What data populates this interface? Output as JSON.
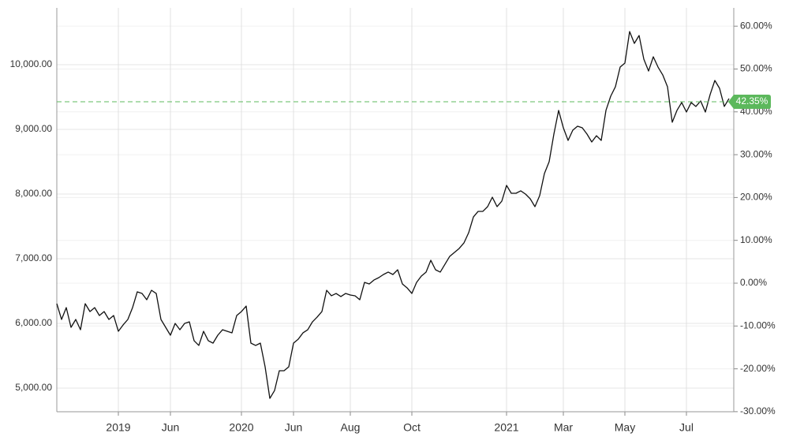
{
  "chart_data": {
    "type": "line",
    "categories": [
      null,
      null,
      null,
      null,
      null,
      null,
      null,
      null,
      null,
      null,
      null,
      null,
      null,
      "2019",
      null,
      null,
      null,
      null,
      null,
      null,
      null,
      null,
      null,
      null,
      "Jun",
      null,
      null,
      null,
      null,
      null,
      null,
      null,
      null,
      null,
      null,
      null,
      null,
      null,
      null,
      "2020",
      null,
      null,
      null,
      null,
      null,
      null,
      null,
      null,
      null,
      null,
      "Jun",
      null,
      null,
      null,
      null,
      null,
      null,
      null,
      null,
      null,
      null,
      null,
      "Aug",
      null,
      null,
      null,
      null,
      null,
      null,
      null,
      null,
      null,
      null,
      null,
      null,
      "Oct",
      null,
      null,
      null,
      null,
      null,
      null,
      null,
      null,
      null,
      null,
      null,
      null,
      null,
      null,
      null,
      null,
      null,
      null,
      null,
      "2021",
      null,
      null,
      null,
      null,
      null,
      null,
      null,
      null,
      null,
      null,
      null,
      "Mar",
      null,
      null,
      null,
      null,
      null,
      null,
      null,
      null,
      null,
      null,
      null,
      null,
      "May",
      null,
      null,
      null,
      null,
      null,
      null,
      null,
      null,
      null,
      null,
      null,
      null,
      "Jul",
      null,
      null,
      null,
      null,
      null,
      null,
      null,
      null,
      null
    ],
    "values": [
      6305,
      6061,
      6244,
      5939,
      6061,
      5902,
      6305,
      6183,
      6244,
      6122,
      6183,
      6061,
      6122,
      5878,
      5976,
      6061,
      6244,
      6488,
      6463,
      6366,
      6512,
      6463,
      6061,
      5939,
      5817,
      6000,
      5902,
      6000,
      6024,
      5732,
      5659,
      5878,
      5732,
      5695,
      5817,
      5902,
      5878,
      5854,
      6122,
      6183,
      6268,
      5695,
      5659,
      5695,
      5329,
      4841,
      4963,
      5268,
      5268,
      5329,
      5695,
      5756,
      5854,
      5902,
      6024,
      6098,
      6183,
      6512,
      6427,
      6463,
      6415,
      6463,
      6439,
      6427,
      6366,
      6634,
      6610,
      6671,
      6707,
      6756,
      6793,
      6756,
      6829,
      6610,
      6549,
      6463,
      6634,
      6732,
      6793,
      6976,
      6829,
      6793,
      6915,
      7037,
      7098,
      7159,
      7244,
      7402,
      7646,
      7732,
      7732,
      7805,
      7951,
      7805,
      7890,
      8134,
      8012,
      8012,
      8049,
      8000,
      7927,
      7805,
      7976,
      8317,
      8500,
      8927,
      9293,
      9024,
      8829,
      8988,
      9049,
      9024,
      8927,
      8805,
      8902,
      8829,
      9293,
      9512,
      9659,
      9963,
      10024,
      10512,
      10329,
      10451,
      10085,
      9902,
      10122,
      9963,
      9841,
      9659,
      9110,
      9293,
      9415,
      9268,
      9415,
      9354,
      9439,
      9268,
      9537,
      9756,
      9634,
      9354,
      9476
    ],
    "color": "#111111",
    "ylim": [
      4634,
      10878
    ],
    "yticks": [
      {
        "value": 5000,
        "label": "5,000.00"
      },
      {
        "value": 6000,
        "label": "6,000.00"
      },
      {
        "value": 7000,
        "label": "7,000.00"
      },
      {
        "value": 8000,
        "label": "8,000.00"
      },
      {
        "value": 9000,
        "label": "9,000.00"
      },
      {
        "value": 10000,
        "label": "10,000.00"
      }
    ],
    "y2lim": [
      -30.02,
      64.27
    ],
    "y2ticks": [
      {
        "value": -30,
        "label": "-30.00%"
      },
      {
        "value": -20,
        "label": "-20.00%"
      },
      {
        "value": -10,
        "label": "-10.00%"
      },
      {
        "value": 0,
        "label": "0.00%"
      },
      {
        "value": 10,
        "label": "10.00%"
      },
      {
        "value": 20,
        "label": "20.00%"
      },
      {
        "value": 30,
        "label": "30.00%"
      },
      {
        "value": 40,
        "label": "40.00%"
      },
      {
        "value": 50,
        "label": "50.00%"
      },
      {
        "value": 60,
        "label": "60.00%"
      }
    ],
    "reference_line": {
      "axis": "y2",
      "value": 42.35,
      "label": "42.35%",
      "color": "#5cb85c"
    },
    "grid": true
  }
}
